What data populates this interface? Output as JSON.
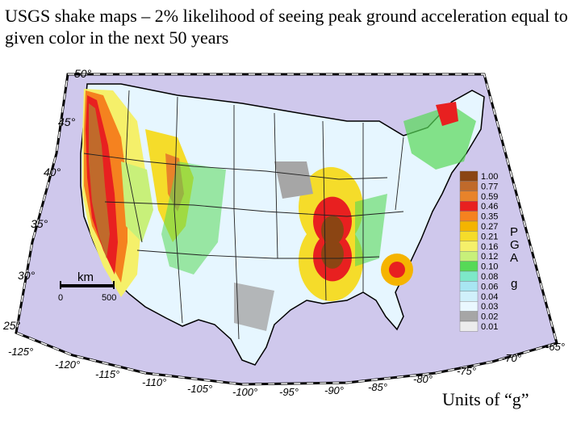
{
  "slide": {
    "title": "USGS shake maps – 2% likelihood of seeing peak ground acceleration equal to given color in the next 50 years",
    "units_caption": "Units of “g”"
  },
  "map": {
    "latitude_labels": [
      "50°",
      "45°",
      "40°",
      "35°",
      "30°",
      "25°"
    ],
    "longitude_labels": [
      "-125°",
      "-120°",
      "-115°",
      "-110°",
      "-105°",
      "-100°",
      "-95°",
      "-90°",
      "-85°",
      "-80°",
      "-75°",
      "-70°",
      "-65°"
    ],
    "scale_bar": {
      "unit": "km",
      "start": "0",
      "end": "500"
    },
    "ocean_color": "#cfc8ec",
    "land_base_color": "#e6f6ff",
    "state_line_color": "#222222"
  },
  "legend": {
    "axis_label_letters": [
      "P",
      "G",
      "A"
    ],
    "unit_letter": "g",
    "bins": [
      {
        "label": "1.00",
        "color": "#8b4513"
      },
      {
        "label": "0.77",
        "color": "#c06a2b"
      },
      {
        "label": "0.59",
        "color": "#e8832a"
      },
      {
        "label": "0.46",
        "color": "#e82020"
      },
      {
        "label": "0.35",
        "color": "#f5821f"
      },
      {
        "label": "0.27",
        "color": "#f4b400"
      },
      {
        "label": "0.21",
        "color": "#f5dc2a"
      },
      {
        "label": "0.16",
        "color": "#f5f06a"
      },
      {
        "label": "0.12",
        "color": "#c8f07a"
      },
      {
        "label": "0.10",
        "color": "#57d957"
      },
      {
        "label": "0.08",
        "color": "#7de8c8"
      },
      {
        "label": "0.06",
        "color": "#a8e6f2"
      },
      {
        "label": "0.04",
        "color": "#d0f0fb"
      },
      {
        "label": "0.03",
        "color": "#eaf8ff"
      },
      {
        "label": "0.02",
        "color": "#a6a6a6"
      },
      {
        "label": "0.01",
        "color": "#ececec"
      }
    ]
  }
}
